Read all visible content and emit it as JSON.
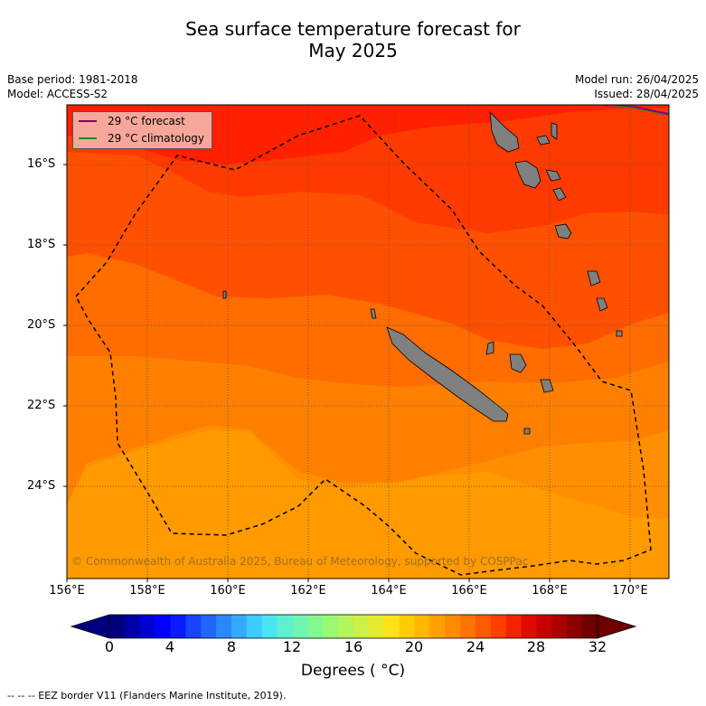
{
  "title_line1": "Sea surface temperature forecast for",
  "title_line2": "May 2025",
  "meta": {
    "base_period": "Base period: 1981-2018",
    "model": "Model: ACCESS-S2",
    "model_run": "Model run: 26/04/2025",
    "issued": "Issued: 28/04/2025"
  },
  "legend": {
    "forecast_label": "29 °C  forecast",
    "climatology_label": "29 °C  climatology",
    "forecast_color": "#800080",
    "climatology_color": "#1a8c1a"
  },
  "map": {
    "lat_labels": [
      "16°S",
      "18°S",
      "20°S",
      "22°S",
      "24°S"
    ],
    "lon_labels": [
      "156°E",
      "158°E",
      "160°E",
      "162°E",
      "164°E",
      "166°E",
      "168°E",
      "170°E"
    ],
    "copyright": "© Commonwealth of Australia 2025, Bureau of Meteorology, supported by COSPPac",
    "land_color": "#808080"
  },
  "colorbar": {
    "ticks": [
      "0",
      "4",
      "8",
      "12",
      "16",
      "20",
      "24",
      "28",
      "32"
    ],
    "label": "Degrees ( °C)",
    "colors": [
      "#00007f",
      "#0000a8",
      "#0000d4",
      "#0000ff",
      "#0a1cff",
      "#1644ff",
      "#2066ff",
      "#2a88ff",
      "#34aaff",
      "#3ecbff",
      "#48e6f0",
      "#5cf0d0",
      "#6ef5b0",
      "#84f890",
      "#9bf872",
      "#b3f55c",
      "#ccf044",
      "#e4ea2e",
      "#fde11a",
      "#ffcd00",
      "#ffb700",
      "#ffa000",
      "#ff8a00",
      "#ff7300",
      "#ff5a00",
      "#ff3f00",
      "#f52200",
      "#e00a00",
      "#c80000",
      "#ab0000",
      "#8c0000",
      "#6e0000"
    ]
  },
  "footnote": "--  --  -- EEZ border V11 (Flanders Marine Institute, 2019)."
}
